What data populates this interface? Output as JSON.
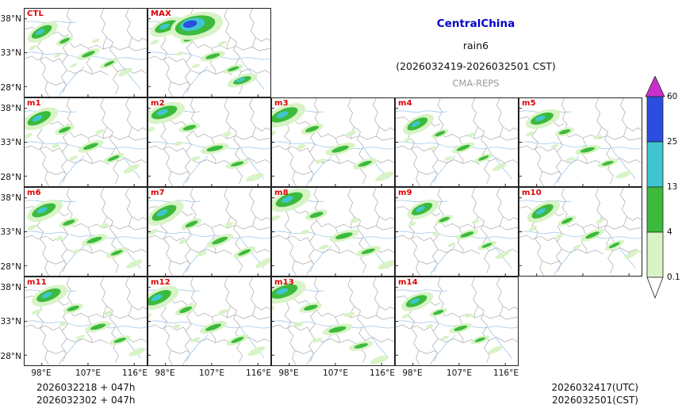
{
  "title": {
    "region": "CentralChina",
    "variable": "rain6",
    "valid_period": "(2026032419-2026032501 CST)",
    "model": "CMA-REPS"
  },
  "chart_data": {
    "type": "heatmap",
    "panel_rows": [
      [
        "CTL",
        "MAX"
      ],
      [
        "m1",
        "m2",
        "m3",
        "m4",
        "m5"
      ],
      [
        "m6",
        "m7",
        "m8",
        "m9",
        "m10"
      ],
      [
        "m11",
        "m12",
        "m13",
        "m14"
      ]
    ],
    "x_ticks": [
      "98°E",
      "107°E",
      "116°E"
    ],
    "y_ticks": [
      "38°N",
      "33°N",
      "28°N"
    ],
    "colorbar": {
      "levels": [
        "60",
        "25",
        "13",
        "4",
        "0.1"
      ],
      "segment_colors": [
        "#2b4ee0",
        "#3fc6cf",
        "#3cba3c",
        "#d8f3c6"
      ],
      "over_arrow_color": "#cb2fcb",
      "under_arrow_color": "#ffffff"
    }
  },
  "footer": {
    "init_lines": [
      "2026032218 + 047h",
      "2026032302 + 047h"
    ],
    "valid_lines": [
      "2026032417(UTC)",
      "2026032501(CST)"
    ]
  },
  "colors": {
    "panel_label": "#dd0000",
    "title_region": "#0000cc",
    "model_text": "#9a9a9a",
    "border_line": "#9a9a9a",
    "river_line": "#9fc6e8",
    "panel_border": "#222222"
  }
}
